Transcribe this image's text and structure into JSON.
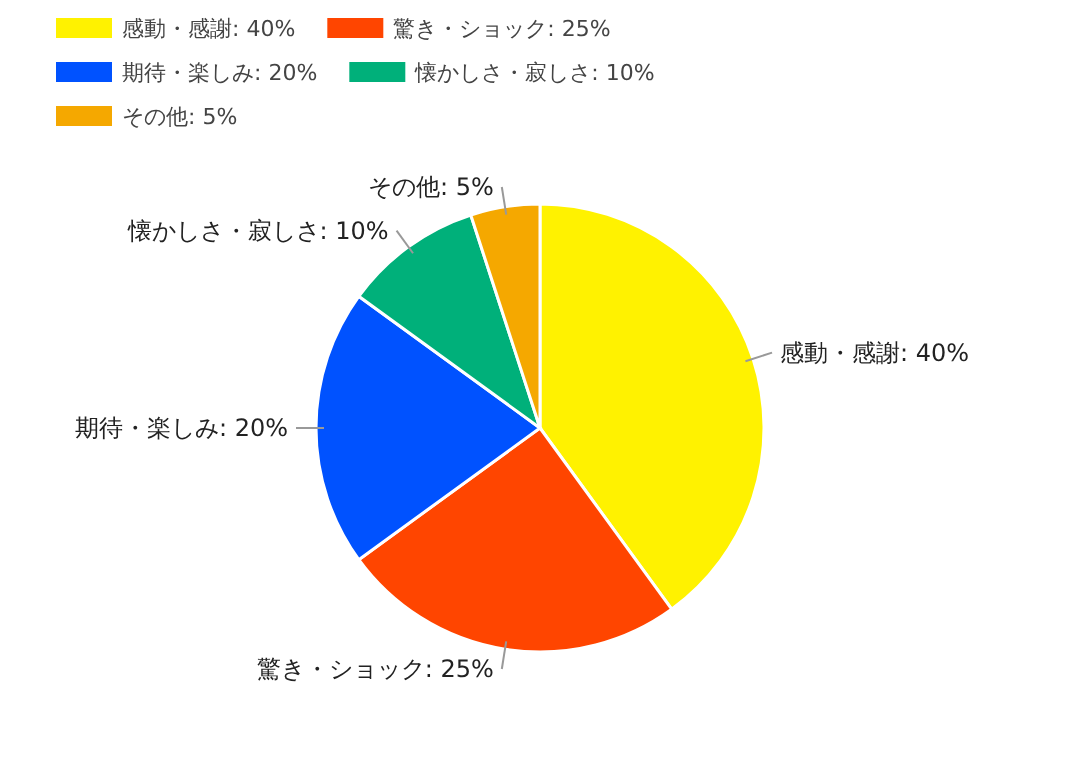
{
  "chart_data": {
    "type": "pie",
    "categories": [
      "感動・感謝: 40%",
      "驚き・ショック: 25%",
      "期待・楽しみ: 20%",
      "懐かしさ・寂しさ: 10%",
      "その他: 5%"
    ],
    "values": [
      40,
      25,
      20,
      10,
      5
    ],
    "colors": [
      "#fff200",
      "#ff4500",
      "#0052ff",
      "#00b07a",
      "#f5a800"
    ],
    "legend": "top left"
  }
}
